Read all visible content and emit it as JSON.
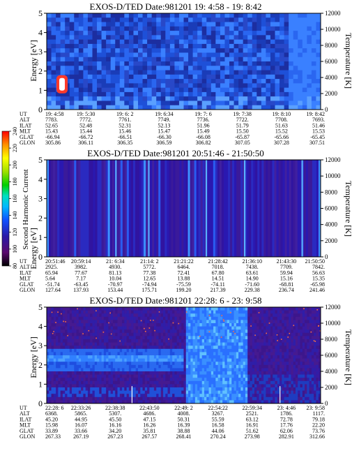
{
  "chart_data": [
    {
      "type": "heatmap",
      "title": "EXOS-D/TED    Date:981201  19: 4:58 - 19: 8:42",
      "ylabel": "Energy [eV]",
      "ylabel_right": "Temperature [K]",
      "ylim": [
        0,
        5
      ],
      "yticks": [
        "0",
        "1",
        "2",
        "3",
        "4",
        "5"
      ],
      "ylim_right": [
        0,
        12000
      ],
      "yticks_right": [
        "0",
        "2000",
        "4000",
        "6000",
        "8000",
        "10000",
        "12000"
      ],
      "ephemeris": {
        "labels": [
          "UT",
          "ALT",
          "ILAT",
          "MLT",
          "GLAT",
          "GLON"
        ],
        "columns": [
          [
            "19: 4:58",
            "7783.",
            "52.65",
            "15.43",
            "-66.94",
            "305.86"
          ],
          [
            "19: 5:30",
            "7772.",
            "52.48",
            "15.44",
            "-66.72",
            "306.11"
          ],
          [
            "19: 6: 2",
            "7761.",
            "52.31",
            "15.46",
            "-66.51",
            "306.35"
          ],
          [
            "19: 6:34",
            "7749.",
            "52.13",
            "15.47",
            "-66.30",
            "306.59"
          ],
          [
            "19: 7: 6",
            "7736.",
            "51.96",
            "15.49",
            "-66.08",
            "306.82"
          ],
          [
            "19: 7:38",
            "7722.",
            "51.79",
            "15.50",
            "-65.87",
            "307.05"
          ],
          [
            "19: 8:10",
            "7708.",
            "51.63",
            "15.52",
            "-65.66",
            "307.28"
          ],
          [
            "19: 8:42",
            "7693.",
            "51.46",
            "15.53",
            "-65.45",
            "307.51"
          ]
        ]
      }
    },
    {
      "type": "heatmap",
      "title": "EXOS-D/TED    Date:981201  20:51:46 - 21:50:50",
      "ylabel": "Energy [eV]",
      "ylabel_right": "Temperature [K]",
      "ylim": [
        0,
        5
      ],
      "yticks": [
        "0",
        "1",
        "2",
        "3",
        "4",
        "5"
      ],
      "ylim_right": [
        0,
        12000
      ],
      "yticks_right": [
        "0",
        "2000",
        "4000",
        "6000",
        "8000",
        "10000",
        "12000"
      ],
      "ephemeris": {
        "labels": [
          "UT",
          "ALT",
          "ILAT",
          "MLT",
          "GLAT",
          "GLON"
        ],
        "columns": [
          [
            "20:51:46",
            "2925.",
            "65.94",
            "5.64",
            "-51.74",
            "127.64"
          ],
          [
            "20:59:14",
            "3982.",
            "77.67",
            "7.17",
            "-63.45",
            "137.93"
          ],
          [
            "21: 6:34",
            "4930.",
            "81.13",
            "10.04",
            "-70.97",
            "153.44"
          ],
          [
            "21:14: 2",
            "5772.",
            "77.38",
            "12.65",
            "-74.94",
            "175.71"
          ],
          [
            "21:21:22",
            "6464.",
            "72.41",
            "13.88",
            "-75.59",
            "199.20"
          ],
          [
            "21:28:42",
            "7018.",
            "67.80",
            "14.51",
            "-74.11",
            "217.39"
          ],
          [
            "21:36:10",
            "7438.",
            "63.61",
            "14.90",
            "-71.60",
            "229.38"
          ],
          [
            "21:43:30",
            "7709.",
            "59.94",
            "15.16",
            "-68.81",
            "236.74"
          ],
          [
            "21:50:50",
            "7842.",
            "56.63",
            "15.35",
            "-65.98",
            "241.46"
          ]
        ]
      }
    },
    {
      "type": "heatmap",
      "title": "EXOS-D/TED    Date:981201  22:28: 6 - 23: 9:58",
      "ylabel": "Energy [eV]",
      "ylabel_right": "Temperature [K]",
      "ylim": [
        0,
        5
      ],
      "yticks": [
        "0",
        "1",
        "2",
        "3",
        "4",
        "5"
      ],
      "ylim_right": [
        0,
        12000
      ],
      "yticks_right": [
        "0",
        "2000",
        "4000",
        "6000",
        "8000",
        "10000",
        "12000"
      ],
      "ephemeris": {
        "labels": [
          "UT",
          "ALT",
          "ILAT",
          "MLT",
          "GLAT",
          "GLON"
        ],
        "columns": [
          [
            "22:28: 6",
            "6368.",
            "45.20",
            "15.98",
            "33.89",
            "267.33"
          ],
          [
            "22:33:26",
            "5865.",
            "44.95",
            "16.07",
            "33.66",
            "267.19"
          ],
          [
            "22:38:38",
            "5307.",
            "45.50",
            "16.16",
            "34.20",
            "267.23"
          ],
          [
            "22:43:50",
            "4686.",
            "47.15",
            "16.26",
            "35.81",
            "267.57"
          ],
          [
            "22:49: 2",
            "4008.",
            "50.31",
            "16.39",
            "38.88",
            "268.41"
          ],
          [
            "22:54:22",
            "3267.",
            "55.59",
            "16.58",
            "44.06",
            "270.24"
          ],
          [
            "22:59:34",
            "2521.",
            "63.12",
            "16.91",
            "51.62",
            "273.98"
          ],
          [
            "23: 4:46",
            "1786.",
            "72.78",
            "17.76",
            "62.06",
            "282.91"
          ],
          [
            "23: 9:58",
            "1117.",
            "79.18",
            "22.20",
            "73.76",
            "312.66"
          ]
        ]
      }
    }
  ],
  "colorbar": {
    "label": "Second Harmonic Current",
    "ticks": [
      "80",
      "100",
      "120",
      "140",
      "160",
      "180",
      "200",
      "220",
      "240"
    ]
  }
}
